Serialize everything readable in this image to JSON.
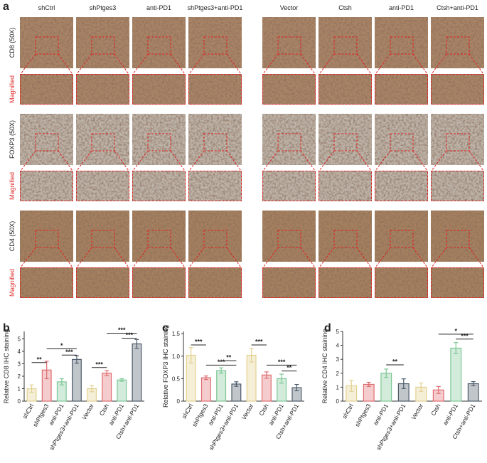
{
  "panel_labels": [
    "a",
    "b",
    "c",
    "d"
  ],
  "left_columns": [
    "shCtrl",
    "shPtges3",
    "anti-PD1",
    "shPtges3+anti-PD1"
  ],
  "right_columns": [
    "Vector",
    "Ctsh",
    "anti-PD1",
    "Ctsh+anti-PD1"
  ],
  "rows": [
    {
      "label": "CD8 (50X)",
      "magnified": "Magnified"
    },
    {
      "label": "FOXP3 (50X)",
      "magnified": "Magnified"
    },
    {
      "label": "CD4 (50X)",
      "magnified": "Magnified"
    }
  ],
  "chart_data": [
    {
      "type": "bar",
      "y_label": "Relative CD8 IHC staining",
      "categories": [
        "shCtrl",
        "shPtges3",
        "anti-PD1",
        "shPtges3+anti-PD1",
        "Vector",
        "Ctsh",
        "anti-PD1",
        "Ctsh+anti-PD1"
      ],
      "values": [
        1.0,
        2.5,
        1.55,
        3.35,
        1.0,
        2.25,
        1.7,
        4.6
      ],
      "errors": [
        0.3,
        0.7,
        0.25,
        0.3,
        0.25,
        0.2,
        0.1,
        0.35
      ],
      "colors": [
        "#e3d08f",
        "#e06c70",
        "#7dc796",
        "#4d5b69",
        "#e3d08f",
        "#e06c70",
        "#7dc796",
        "#4d5b69"
      ],
      "ylim": [
        0,
        5.6
      ],
      "yticks": [
        0,
        1,
        2,
        3,
        4,
        5
      ],
      "annotations": [
        {
          "from": 0,
          "to": 1,
          "y": 3.1,
          "label": "**"
        },
        {
          "from": 1,
          "to": 3,
          "y": 4.2,
          "label": "*"
        },
        {
          "from": 2,
          "to": 3,
          "y": 3.7,
          "label": "***"
        },
        {
          "from": 4,
          "to": 5,
          "y": 2.7,
          "label": "***"
        },
        {
          "from": 5,
          "to": 7,
          "y": 5.45,
          "label": "***"
        },
        {
          "from": 6,
          "to": 7,
          "y": 5.05,
          "label": "***"
        }
      ]
    },
    {
      "type": "bar",
      "y_label": "Relative FOXP3 IHC staining",
      "categories": [
        "shCtrl",
        "shPtges3",
        "anti-PD1",
        "shPtges3+anti-PD1",
        "Vector",
        "Ctsh",
        "anti-PD1",
        "Ctsh+anti-PD1"
      ],
      "values": [
        1.02,
        0.52,
        0.68,
        0.38,
        1.02,
        0.58,
        0.5,
        0.3
      ],
      "errors": [
        0.17,
        0.04,
        0.06,
        0.05,
        0.15,
        0.07,
        0.1,
        0.07
      ],
      "colors": [
        "#e3d08f",
        "#e06c70",
        "#7dc796",
        "#4d5b69",
        "#e3d08f",
        "#e06c70",
        "#7dc796",
        "#4d5b69"
      ],
      "ylim": [
        0,
        1.55
      ],
      "yticks": [
        0,
        0.5,
        {
          "value": 1,
          "label": "1.0"
        },
        {
          "value": 1.5,
          "label": "1.5"
        }
      ],
      "annotations": [
        {
          "from": 0,
          "to": 1,
          "y": 1.25,
          "label": "***"
        },
        {
          "from": 2,
          "to": 3,
          "y": 0.9,
          "label": "**"
        },
        {
          "from": 1,
          "to": 3,
          "y": 0.8,
          "label": "***"
        },
        {
          "from": 4,
          "to": 5,
          "y": 1.25,
          "label": "***"
        },
        {
          "from": 5,
          "to": 7,
          "y": 0.8,
          "label": "***"
        },
        {
          "from": 6,
          "to": 7,
          "y": 0.67,
          "label": "**"
        }
      ]
    },
    {
      "type": "bar",
      "y_label": "Relative CD4 IHC staining",
      "categories": [
        "shCtrl",
        "shPtges3",
        "anti-PD1",
        "shPtges3+anti-PD1",
        "Vector",
        "Ctsh",
        "anti-PD1",
        "Ctsh+anti-PD1"
      ],
      "values": [
        1.1,
        1.2,
        2.0,
        1.25,
        1.0,
        0.8,
        3.8,
        1.25
      ],
      "errors": [
        0.4,
        0.15,
        0.3,
        0.35,
        0.3,
        0.25,
        0.4,
        0.15
      ],
      "colors": [
        "#e3d08f",
        "#e06c70",
        "#7dc796",
        "#4d5b69",
        "#e3d08f",
        "#e06c70",
        "#7dc796",
        "#4d5b69"
      ],
      "ylim": [
        0,
        5
      ],
      "yticks": [
        0,
        1,
        2,
        3,
        4,
        5
      ],
      "annotations": [
        {
          "from": 2,
          "to": 3,
          "y": 2.6,
          "label": "**"
        },
        {
          "from": 5,
          "to": 7,
          "y": 4.8,
          "label": "*"
        },
        {
          "from": 6,
          "to": 7,
          "y": 4.45,
          "label": "***"
        }
      ]
    }
  ]
}
